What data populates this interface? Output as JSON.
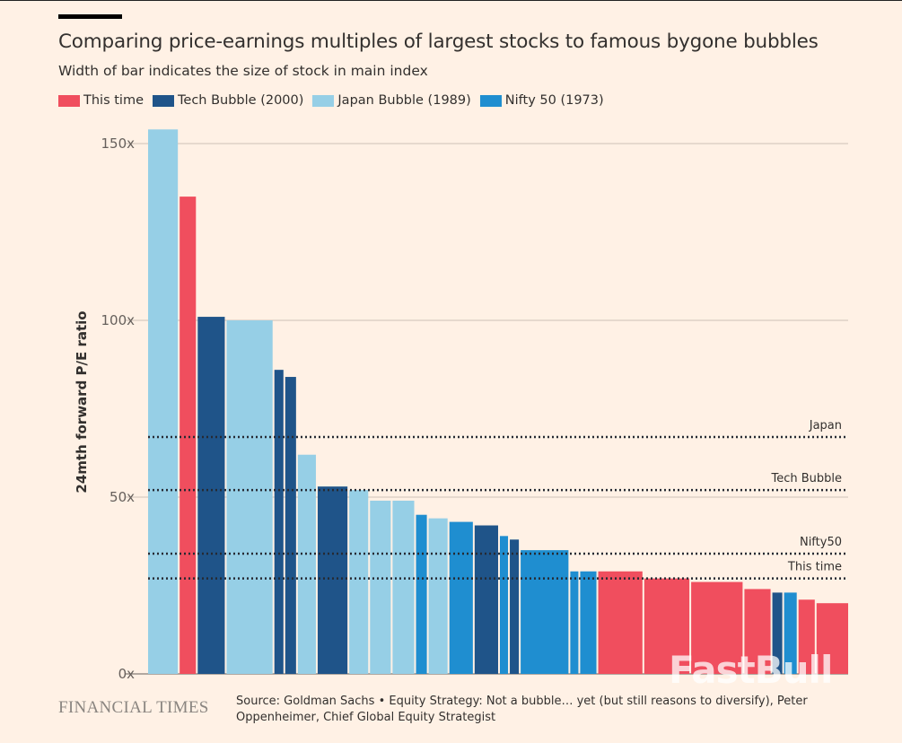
{
  "header": {
    "title": "Comparing price-earnings multiples of largest stocks to famous bygone bubbles",
    "subtitle": "Width of bar indicates the size of stock in main index"
  },
  "footer": {
    "brand": "FINANCIAL TIMES",
    "source": "Source: Goldman Sachs • Equity Strategy: Not a bubble… yet (but still reasons to diversify), Peter Oppenheimer, Chief Global Equity Strategist",
    "watermark": "FastBull"
  },
  "chart_data": {
    "type": "bar",
    "title": "Comparing price-earnings multiples of largest stocks to famous bygone bubbles",
    "subtitle": "Width of bar indicates the size of stock in main index",
    "ylabel": "24mth forward P/E ratio",
    "xlabel": "",
    "ylim": [
      0,
      150
    ],
    "yticks": [
      0,
      50,
      100,
      150
    ],
    "ytick_labels": [
      "0x",
      "50x",
      "100x",
      "150x"
    ],
    "grid": true,
    "legend_position": "top-left",
    "series": [
      {
        "name": "This time",
        "color": "#f04e5e"
      },
      {
        "name": "Tech Bubble (2000)",
        "color": "#1f5489"
      },
      {
        "name": "Japan Bubble (1989)",
        "color": "#96cfe6"
      },
      {
        "name": "Nifty 50 (1973)",
        "color": "#1f8ed0"
      }
    ],
    "bars": [
      {
        "series": 2,
        "value": 154,
        "weight": 33
      },
      {
        "series": 0,
        "value": 135,
        "weight": 18
      },
      {
        "series": 1,
        "value": 101,
        "weight": 30
      },
      {
        "series": 2,
        "value": 100,
        "weight": 51
      },
      {
        "series": 1,
        "value": 86,
        "weight": 10
      },
      {
        "series": 1,
        "value": 84,
        "weight": 12
      },
      {
        "series": 2,
        "value": 62,
        "weight": 20
      },
      {
        "series": 1,
        "value": 53,
        "weight": 33
      },
      {
        "series": 2,
        "value": 52,
        "weight": 21
      },
      {
        "series": 2,
        "value": 49,
        "weight": 23
      },
      {
        "series": 2,
        "value": 49,
        "weight": 24
      },
      {
        "series": 3,
        "value": 45,
        "weight": 12
      },
      {
        "series": 2,
        "value": 44,
        "weight": 21
      },
      {
        "series": 3,
        "value": 43,
        "weight": 26
      },
      {
        "series": 1,
        "value": 42,
        "weight": 26
      },
      {
        "series": 3,
        "value": 39,
        "weight": 9
      },
      {
        "series": 1,
        "value": 38,
        "weight": 10
      },
      {
        "series": 3,
        "value": 35,
        "weight": 53
      },
      {
        "series": 3,
        "value": 29,
        "weight": 9
      },
      {
        "series": 3,
        "value": 29,
        "weight": 18
      },
      {
        "series": 0,
        "value": 29,
        "weight": 49
      },
      {
        "series": 0,
        "value": 27,
        "weight": 50
      },
      {
        "series": 0,
        "value": 26,
        "weight": 57
      },
      {
        "series": 0,
        "value": 24,
        "weight": 29
      },
      {
        "series": 1,
        "value": 23,
        "weight": 11
      },
      {
        "series": 3,
        "value": 23,
        "weight": 14
      },
      {
        "series": 0,
        "value": 21,
        "weight": 18
      },
      {
        "series": 0,
        "value": 20,
        "weight": 35
      }
    ],
    "reference_lines": [
      {
        "label": "Japan",
        "value": 67
      },
      {
        "label": "Tech Bubble",
        "value": 52
      },
      {
        "label": "Nifty50",
        "value": 34
      },
      {
        "label": "This time",
        "value": 27
      }
    ]
  }
}
